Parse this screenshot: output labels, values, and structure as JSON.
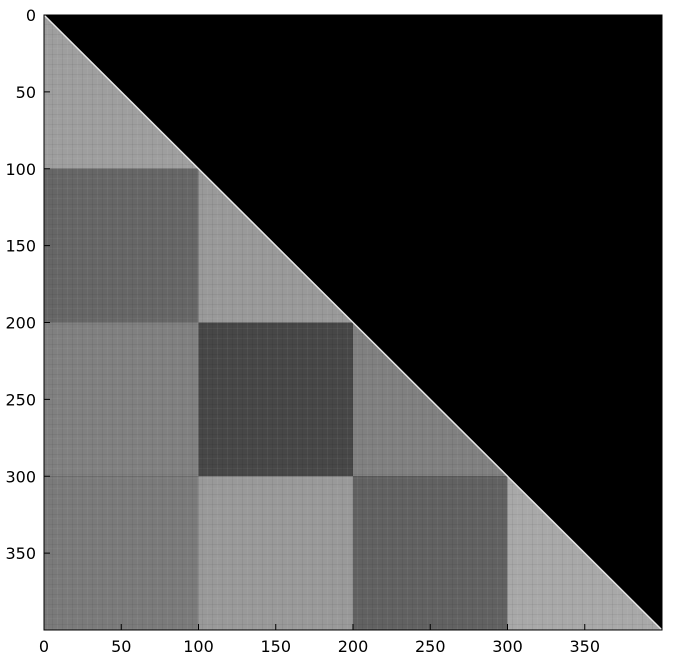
{
  "chart_data": {
    "type": "heatmap",
    "title": "",
    "xlabel": "",
    "ylabel": "",
    "colormap": "gray",
    "matrix_size": 400,
    "xlim": [
      0,
      400
    ],
    "ylim": [
      400,
      0
    ],
    "y_axis_inverted": true,
    "mask": "upper triangle above the diagonal is 0 (black)",
    "x_ticks": [
      0,
      50,
      100,
      150,
      200,
      250,
      300,
      350
    ],
    "y_ticks": [
      0,
      50,
      100,
      150,
      200,
      250,
      300,
      350
    ],
    "diagonal_intensity": 0.9,
    "blocks": [
      {
        "rows": [
          0,
          100
        ],
        "cols": [
          0,
          100
        ],
        "intensity": 0.62
      },
      {
        "rows": [
          100,
          200
        ],
        "cols": [
          0,
          100
        ],
        "intensity": 0.4
      },
      {
        "rows": [
          100,
          200
        ],
        "cols": [
          100,
          200
        ],
        "intensity": 0.6
      },
      {
        "rows": [
          200,
          300
        ],
        "cols": [
          0,
          100
        ],
        "intensity": 0.5
      },
      {
        "rows": [
          200,
          300
        ],
        "cols": [
          100,
          200
        ],
        "intensity": 0.28
      },
      {
        "rows": [
          200,
          300
        ],
        "cols": [
          200,
          300
        ],
        "intensity": 0.5
      },
      {
        "rows": [
          300,
          400
        ],
        "cols": [
          0,
          100
        ],
        "intensity": 0.48
      },
      {
        "rows": [
          300,
          400
        ],
        "cols": [
          100,
          200
        ],
        "intensity": 0.6
      },
      {
        "rows": [
          300,
          400
        ],
        "cols": [
          200,
          300
        ],
        "intensity": 0.38
      },
      {
        "rows": [
          300,
          400
        ],
        "cols": [
          300,
          400
        ],
        "intensity": 0.66
      }
    ]
  }
}
